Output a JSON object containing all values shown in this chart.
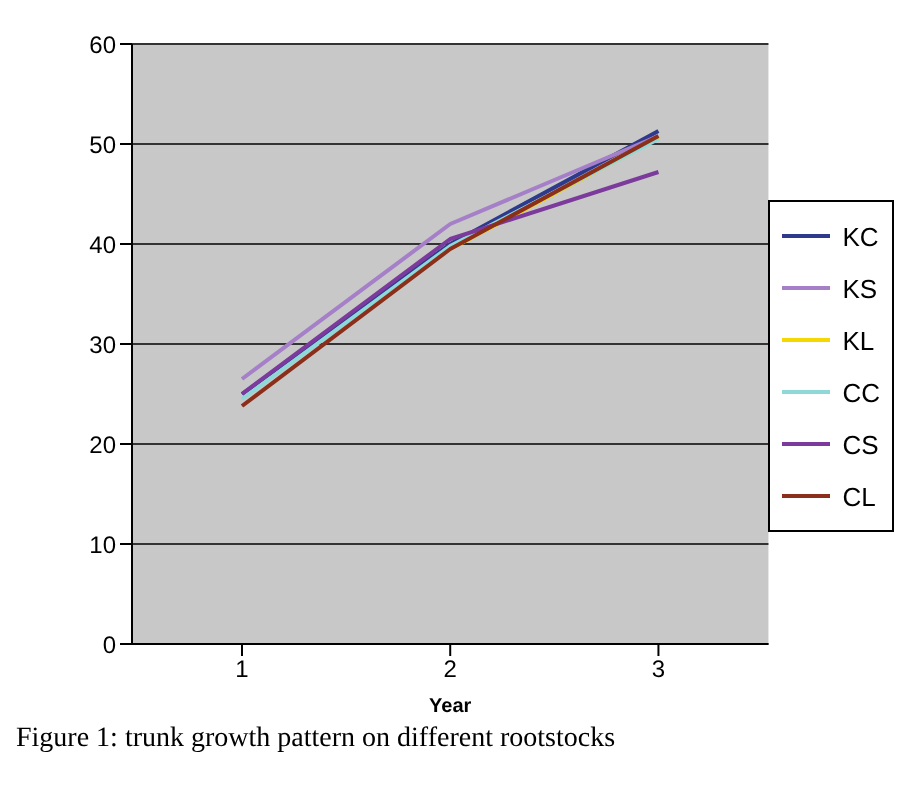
{
  "chart_data": {
    "type": "line",
    "xlabel": "Year",
    "categories": [
      "1",
      "2",
      "3"
    ],
    "series": [
      {
        "name": "KC",
        "color": "#2e3a8c",
        "values": [
          25,
          40,
          51.3
        ]
      },
      {
        "name": "KS",
        "color": "#a57fc8",
        "values": [
          26.5,
          42,
          50.8
        ]
      },
      {
        "name": "KL",
        "color": "#f5d800",
        "values": [
          null,
          39.5,
          50.6
        ]
      },
      {
        "name": "CC",
        "color": "#8fd8d8",
        "values": [
          24.5,
          39.8,
          50.5
        ]
      },
      {
        "name": "CS",
        "color": "#7b3a9c",
        "values": [
          25,
          40.5,
          47.2
        ]
      },
      {
        "name": "CL",
        "color": "#8b2e1a",
        "values": [
          23.8,
          39.5,
          50.8
        ]
      }
    ],
    "ylim": [
      0,
      60
    ],
    "yticks": [
      0,
      10,
      20,
      30,
      40,
      50,
      60
    ],
    "grid": "y",
    "legend": "right",
    "marker": "none",
    "annotations": [
      "Figure 1: trunk growth pattern on different rootstocks"
    ]
  }
}
